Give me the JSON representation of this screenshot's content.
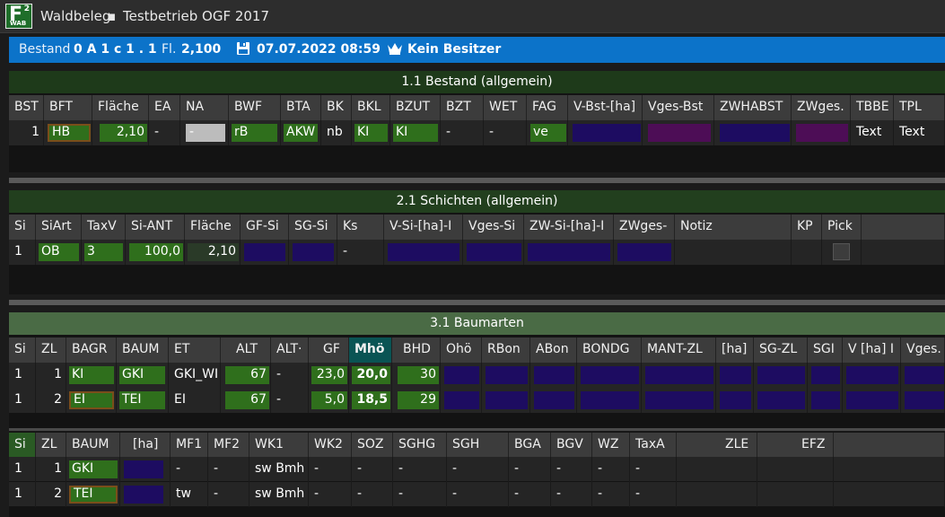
{
  "titlebar": {
    "logo_main": "F",
    "logo_sup": "2",
    "logo_sub": "WAB",
    "app": "Waldbeleg",
    "separator": "▪",
    "project": "Testbetrieb OGF 2017"
  },
  "infobar": {
    "bestand_label": "Bestand",
    "bestand_value": "0 A 1 c 1 . 1",
    "fl_label": "Fl.",
    "fl_value": "2,100",
    "date": "07.07.2022 08:59",
    "owner": "Kein Besitzer"
  },
  "bestand": {
    "title": "1.1 Bestand (allgemein)",
    "headers": [
      "BST",
      "BFT",
      "Fläche",
      "EA",
      "NA",
      "BWF",
      "BTA",
      "BK",
      "BKL",
      "BZUT",
      "BZT",
      "WET",
      "FAG",
      "V-Bst-[ha]",
      "Vges-Bst",
      "ZWHABST",
      "ZWges.",
      "TBBE",
      "TPL"
    ],
    "row": {
      "bst": "1",
      "bft": "HB",
      "flaeche": "2,10",
      "ea": "-",
      "na": "-",
      "bwf": "rB",
      "bta": "AKW",
      "bk": "nb",
      "bkl": "KI",
      "bzut": "KI",
      "bzt": "-",
      "wet": "-",
      "fag": "ve",
      "tbbe": "Text",
      "tpl": "Text"
    }
  },
  "schichten": {
    "title": "2.1 Schichten (allgemein)",
    "headers": [
      "Si",
      "SiArt",
      "TaxV",
      "Si-ANT",
      "Fläche",
      "GF-Si",
      "SG-Si",
      "Ks",
      "V-Si-[ha]-I",
      "Vges-Si",
      "ZW-Si-[ha]-I",
      "ZWges-",
      "Notiz",
      "KP",
      "Pick"
    ],
    "row": {
      "si": "1",
      "siart": "OB",
      "taxv": "3",
      "siant": "100,0",
      "flaeche": "2,10",
      "ks": "-"
    }
  },
  "baumarten": {
    "title": "3.1 Baumarten",
    "headers": [
      "Si",
      "ZL",
      "BAGR",
      "BAUM",
      "ET",
      "ALT",
      "ALT·",
      "GF",
      "Mhö",
      "BHD",
      "Ohö",
      "RBon",
      "ABon",
      "BONDG",
      "MANT-ZL",
      "[ha]",
      "SG-ZL",
      "SGI",
      "V [ha] I",
      "Vges."
    ],
    "rows": [
      {
        "si": "1",
        "zl": "1",
        "bagr": "KI",
        "baum": "GKI",
        "et": "GKI_WI",
        "alt": "67",
        "alt2": "-",
        "gf": "23,0",
        "mhoe": "20,0",
        "bhd": "30"
      },
      {
        "si": "1",
        "zl": "2",
        "bagr": "EI",
        "baum": "TEI",
        "et": "EI",
        "alt": "67",
        "alt2": "-",
        "gf": "5,0",
        "mhoe": "18,5",
        "bhd": "29"
      }
    ]
  },
  "extra": {
    "headers": [
      "Si",
      "ZL",
      "BAUM",
      "[ha]",
      "MF1",
      "MF2",
      "WK1",
      "WK2",
      "SOZ",
      "SGHG",
      "SGH",
      "BGA",
      "BGV",
      "WZ",
      "TaxA",
      "ZLE",
      "EFZ"
    ],
    "rows": [
      {
        "si": "1",
        "zl": "1",
        "baum": "GKI",
        "mf1": "-",
        "mf2": "-",
        "wk1": "sw Bmh",
        "wk2": "-",
        "soz": "-",
        "sghg": "-",
        "sgh": "-",
        "bga": "-",
        "bgv": "-",
        "wz": "-",
        "taxa": "-"
      },
      {
        "si": "1",
        "zl": "2",
        "baum": "TEI",
        "mf1": "tw",
        "mf2": "-",
        "wk1": "sw Bmh",
        "wk2": "-",
        "soz": "-",
        "sghg": "-",
        "sgh": "-",
        "bga": "-",
        "bgv": "-",
        "wz": "-",
        "taxa": "-"
      }
    ]
  },
  "colors": {
    "accent_blue": "#0c73c9",
    "header_green_dark": "#1e3a1a",
    "header_green_light": "#4a6b45",
    "cell_green": "#2f6f1c",
    "cell_navy": "#1d0c61",
    "cell_purple": "#4d0d56"
  },
  "icons": {
    "save": "save-icon",
    "owner": "crown-icon"
  }
}
